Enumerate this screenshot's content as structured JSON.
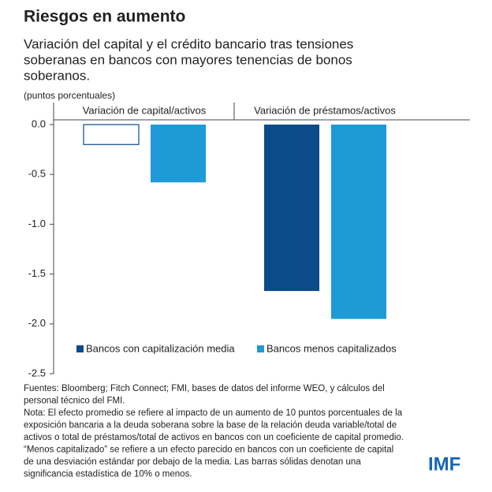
{
  "chart_data": {
    "type": "bar",
    "title": "Riesgos en aumento",
    "subtitle": [
      "Variación del capital y el crédito bancario tras tensiones",
      "soberanas en bancos con mayores tenencias de bonos",
      "soberanos."
    ],
    "unit_label": "(puntos porcentuales)",
    "categories": [
      "Variación de capital/activos",
      "Variación de préstamos/activos"
    ],
    "series": [
      {
        "name": "Bancos con capitalización media",
        "color": "#0b4a8b",
        "values": [
          -0.2,
          -1.67
        ],
        "significant": [
          false,
          true
        ]
      },
      {
        "name": "Bancos menos capitalizados",
        "color": "#1e9ad6",
        "values": [
          -0.58,
          -1.95
        ],
        "significant": [
          true,
          true
        ]
      }
    ],
    "ylim": [
      0,
      -2.5
    ],
    "yticks": [
      {
        "value": 0,
        "label": "0.0"
      },
      -0.5,
      {
        "value": -1,
        "label": "-1.0"
      },
      -1.5,
      {
        "value": -2,
        "label": "-2.0"
      },
      -2.5
    ],
    "notes": [
      "Fuentes: Bloomberg; Fitch Connect; FMI, bases de datos del informe WEO, y cálculos del",
      "personal técnico del FMI.",
      "Nota: El efecto promedio se refiere al impacto de un aumento de 10 puntos porcentuales de la",
      "exposición bancaria a la deuda soberana sobre la base de la relación deuda variable/total de",
      "activos o total de préstamos/total de activos en bancos con un coeficiente de capital promedio.",
      "“Menos capitalizado” se refiere a un efecto parecido en bancos con un coeficiente de capital",
      "de una desviación estándar por debajo de la media. Las barras sólidas denotan una",
      "significancia estadística de 10% o menos."
    ],
    "logo": "IMF"
  }
}
